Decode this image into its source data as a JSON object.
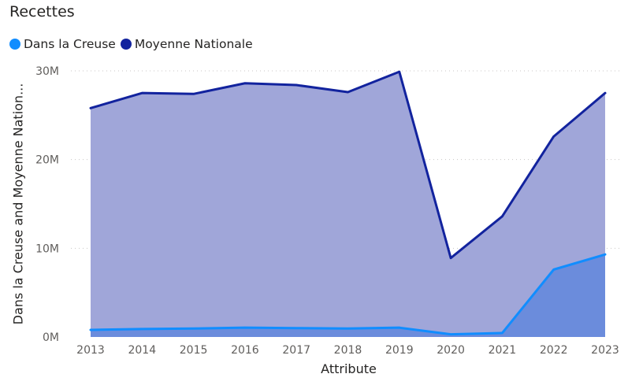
{
  "chart_data": {
    "type": "area",
    "title": "Recettes",
    "xlabel": "Attribute",
    "ylabel": "Dans la Creuse and Moyenne Nation...",
    "x": [
      "2013",
      "2014",
      "2015",
      "2016",
      "2017",
      "2018",
      "2019",
      "2020",
      "2021",
      "2022",
      "2023"
    ],
    "y_ticks": [
      "0M",
      "10M",
      "20M",
      "30M"
    ],
    "ylim": [
      0,
      30000000
    ],
    "grid": true,
    "legend_position": "top-left",
    "series": [
      {
        "name": "Dans la Creuse",
        "color": "#118DFF",
        "fill": "#6b8cdc",
        "values": [
          800000,
          900000,
          950000,
          1050000,
          1000000,
          950000,
          1050000,
          300000,
          450000,
          7600000,
          9300000
        ]
      },
      {
        "name": "Moyenne Nationale",
        "color": "#12239E",
        "fill": "#a0a6d9",
        "values": [
          25800000,
          27500000,
          27400000,
          28600000,
          28400000,
          27600000,
          29900000,
          8900000,
          13600000,
          22600000,
          27500000
        ]
      }
    ]
  }
}
